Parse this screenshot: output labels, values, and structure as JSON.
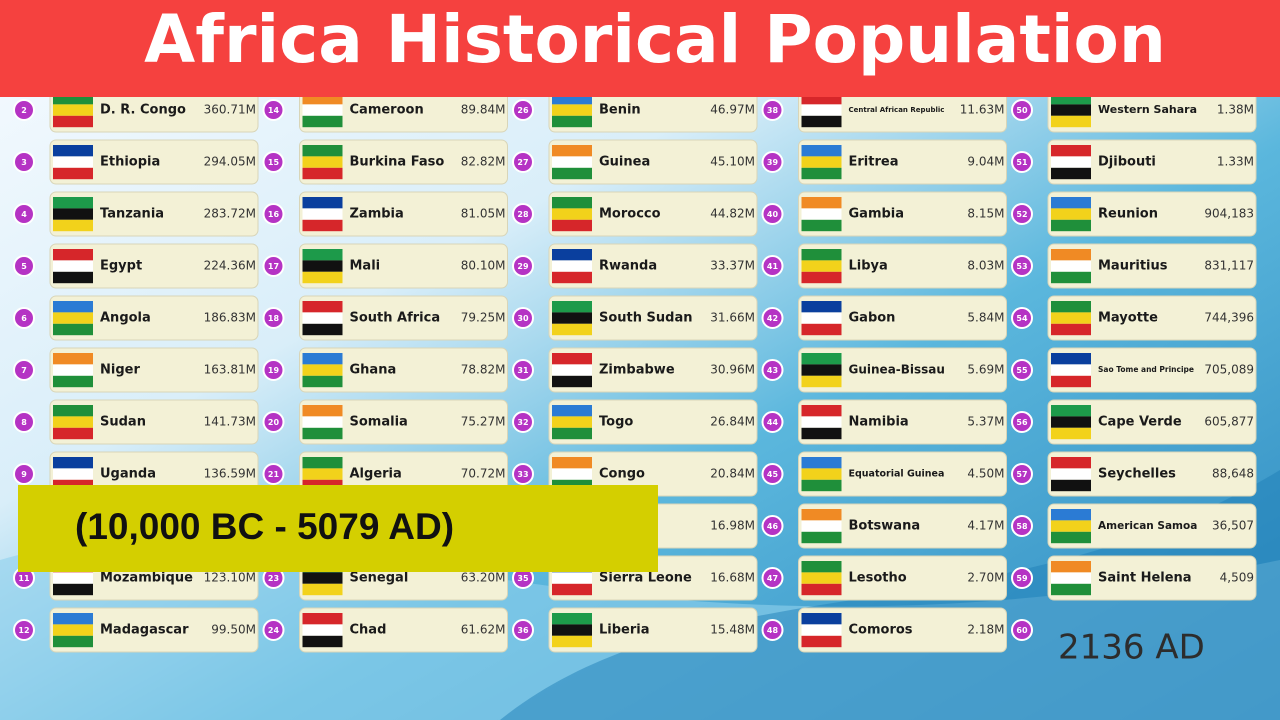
{
  "header": {
    "title": "Africa Historical Population"
  },
  "banner": "(10,000 BC - 5079 AD)",
  "year": "2136 AD",
  "columns": [
    [
      {
        "rank": 2,
        "name": "D. R. Congo",
        "value": "360.71M"
      },
      {
        "rank": 3,
        "name": "Ethiopia",
        "value": "294.05M"
      },
      {
        "rank": 4,
        "name": "Tanzania",
        "value": "283.72M"
      },
      {
        "rank": 5,
        "name": "Egypt",
        "value": "224.36M"
      },
      {
        "rank": 6,
        "name": "Angola",
        "value": "186.83M"
      },
      {
        "rank": 7,
        "name": "Niger",
        "value": "163.81M"
      },
      {
        "rank": 8,
        "name": "Sudan",
        "value": "141.73M"
      },
      {
        "rank": 9,
        "name": "Uganda",
        "value": "136.59M"
      },
      {
        "rank": null,
        "name": null,
        "value": null
      },
      {
        "rank": 11,
        "name": "Mozambique",
        "value": "123.10M"
      },
      {
        "rank": 12,
        "name": "Madagascar",
        "value": "99.50M"
      }
    ],
    [
      {
        "rank": 14,
        "name": "Cameroon",
        "value": "89.84M"
      },
      {
        "rank": 15,
        "name": "Burkina Faso",
        "value": "82.82M"
      },
      {
        "rank": 16,
        "name": "Zambia",
        "value": "81.05M"
      },
      {
        "rank": 17,
        "name": "Mali",
        "value": "80.10M"
      },
      {
        "rank": 18,
        "name": "South Africa",
        "value": "79.25M"
      },
      {
        "rank": 19,
        "name": "Ghana",
        "value": "78.82M"
      },
      {
        "rank": 20,
        "name": "Somalia",
        "value": "75.27M"
      },
      {
        "rank": 21,
        "name": "Algeria",
        "value": "70.72M"
      },
      {
        "rank": null,
        "name": null,
        "value": null
      },
      {
        "rank": 23,
        "name": "Senegal",
        "value": "63.20M"
      },
      {
        "rank": 24,
        "name": "Chad",
        "value": "61.62M"
      }
    ],
    [
      {
        "rank": 26,
        "name": "Benin",
        "value": "46.97M"
      },
      {
        "rank": 27,
        "name": "Guinea",
        "value": "45.10M"
      },
      {
        "rank": 28,
        "name": "Morocco",
        "value": "44.82M"
      },
      {
        "rank": 29,
        "name": "Rwanda",
        "value": "33.37M"
      },
      {
        "rank": 30,
        "name": "South Sudan",
        "value": "31.66M"
      },
      {
        "rank": 31,
        "name": "Zimbabwe",
        "value": "30.96M"
      },
      {
        "rank": 32,
        "name": "Togo",
        "value": "26.84M"
      },
      {
        "rank": 33,
        "name": "Congo",
        "value": "20.84M"
      },
      {
        "rank": null,
        "name": null,
        "value": "16.98M"
      },
      {
        "rank": 35,
        "name": "Sierra Leone",
        "value": "16.68M"
      },
      {
        "rank": 36,
        "name": "Liberia",
        "value": "15.48M"
      }
    ],
    [
      {
        "rank": 38,
        "name": "Central African Republic",
        "value": "11.63M"
      },
      {
        "rank": 39,
        "name": "Eritrea",
        "value": "9.04M"
      },
      {
        "rank": 40,
        "name": "Gambia",
        "value": "8.15M"
      },
      {
        "rank": 41,
        "name": "Libya",
        "value": "8.03M"
      },
      {
        "rank": 42,
        "name": "Gabon",
        "value": "5.84M"
      },
      {
        "rank": 43,
        "name": "Guinea-Bissau",
        "value": "5.69M"
      },
      {
        "rank": 44,
        "name": "Namibia",
        "value": "5.37M"
      },
      {
        "rank": 45,
        "name": "Equatorial Guinea",
        "value": "4.50M"
      },
      {
        "rank": 46,
        "name": "Botswana",
        "value": "4.17M"
      },
      {
        "rank": 47,
        "name": "Lesotho",
        "value": "2.70M"
      },
      {
        "rank": 48,
        "name": "Comoros",
        "value": "2.18M"
      }
    ],
    [
      {
        "rank": 50,
        "name": "Western Sahara",
        "value": "1.38M"
      },
      {
        "rank": 51,
        "name": "Djibouti",
        "value": "1.33M"
      },
      {
        "rank": 52,
        "name": "Reunion",
        "value": "904,183"
      },
      {
        "rank": 53,
        "name": "Mauritius",
        "value": "831,117"
      },
      {
        "rank": 54,
        "name": "Mayotte",
        "value": "744,396"
      },
      {
        "rank": 55,
        "name": "Sao Tome and Principe",
        "value": "705,089"
      },
      {
        "rank": 56,
        "name": "Cape Verde",
        "value": "605,877"
      },
      {
        "rank": 57,
        "name": "Seychelles",
        "value": "88,648"
      },
      {
        "rank": 58,
        "name": "American Samoa",
        "value": "36,507"
      },
      {
        "rank": 59,
        "name": "Saint Helena",
        "value": "4,509"
      },
      {
        "rank": 60,
        "name": null,
        "value": null
      }
    ]
  ]
}
